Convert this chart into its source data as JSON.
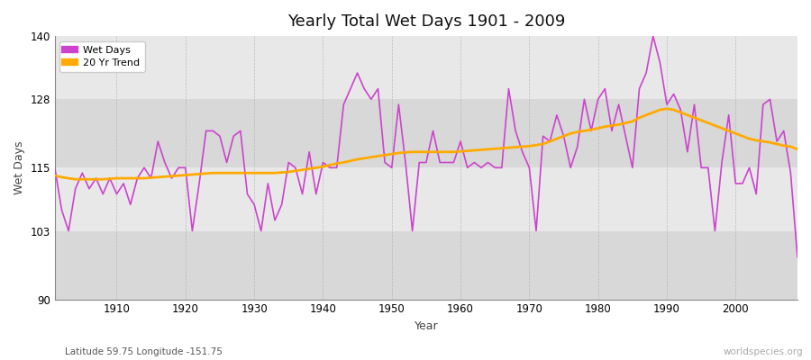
{
  "title": "Yearly Total Wet Days 1901 - 2009",
  "xlabel": "Year",
  "ylabel": "Wet Days",
  "subtitle": "Latitude 59.75 Longitude -151.75",
  "watermark": "worldspecies.org",
  "ylim": [
    90,
    140
  ],
  "yticks": [
    90,
    103,
    115,
    128,
    140
  ],
  "background_color": "#ffffff",
  "plot_bg_color": "#e8e8e8",
  "line_color_wet": "#cc44cc",
  "line_color_trend": "#ffaa00",
  "years": [
    1901,
    1902,
    1903,
    1904,
    1905,
    1906,
    1907,
    1908,
    1909,
    1910,
    1911,
    1912,
    1913,
    1914,
    1915,
    1916,
    1917,
    1918,
    1919,
    1920,
    1921,
    1922,
    1923,
    1924,
    1925,
    1926,
    1927,
    1928,
    1929,
    1930,
    1931,
    1932,
    1933,
    1934,
    1935,
    1936,
    1937,
    1938,
    1939,
    1940,
    1941,
    1942,
    1943,
    1944,
    1945,
    1946,
    1947,
    1948,
    1949,
    1950,
    1951,
    1952,
    1953,
    1954,
    1955,
    1956,
    1957,
    1958,
    1959,
    1960,
    1961,
    1962,
    1963,
    1964,
    1965,
    1966,
    1967,
    1968,
    1969,
    1970,
    1971,
    1972,
    1973,
    1974,
    1975,
    1976,
    1977,
    1978,
    1979,
    1980,
    1981,
    1982,
    1983,
    1984,
    1985,
    1986,
    1987,
    1988,
    1989,
    1990,
    1991,
    1992,
    1993,
    1994,
    1995,
    1996,
    1997,
    1998,
    1999,
    2000,
    2001,
    2002,
    2003,
    2004,
    2005,
    2006,
    2007,
    2008,
    2009
  ],
  "wet_days": [
    115,
    107,
    103,
    111,
    114,
    111,
    113,
    110,
    113,
    110,
    112,
    108,
    113,
    115,
    113,
    120,
    116,
    113,
    115,
    115,
    103,
    112,
    122,
    122,
    121,
    116,
    121,
    122,
    110,
    108,
    103,
    112,
    105,
    108,
    116,
    115,
    110,
    118,
    110,
    116,
    115,
    115,
    127,
    130,
    133,
    130,
    128,
    130,
    116,
    115,
    127,
    116,
    103,
    116,
    116,
    122,
    116,
    116,
    116,
    120,
    115,
    116,
    115,
    116,
    115,
    115,
    130,
    122,
    118,
    115,
    103,
    121,
    120,
    125,
    121,
    115,
    119,
    128,
    122,
    128,
    130,
    122,
    127,
    121,
    115,
    130,
    133,
    140,
    135,
    127,
    129,
    126,
    118,
    127,
    115,
    115,
    103,
    116,
    125,
    112,
    112,
    115,
    110,
    127,
    128,
    120,
    122,
    114,
    98
  ],
  "trend": [
    113.5,
    113.2,
    113.0,
    112.8,
    112.8,
    112.8,
    112.8,
    112.8,
    112.9,
    113.0,
    113.0,
    113.0,
    113.0,
    113.0,
    113.1,
    113.2,
    113.3,
    113.4,
    113.5,
    113.6,
    113.7,
    113.8,
    113.9,
    114.0,
    114.0,
    114.0,
    114.0,
    114.0,
    114.0,
    114.0,
    114.0,
    114.0,
    114.0,
    114.1,
    114.2,
    114.4,
    114.6,
    114.8,
    115.0,
    115.2,
    115.5,
    115.8,
    116.0,
    116.3,
    116.6,
    116.8,
    117.0,
    117.2,
    117.4,
    117.6,
    117.8,
    117.9,
    118.0,
    118.0,
    118.0,
    118.0,
    118.0,
    118.0,
    118.0,
    118.1,
    118.2,
    118.3,
    118.4,
    118.5,
    118.6,
    118.7,
    118.8,
    118.9,
    119.0,
    119.1,
    119.3,
    119.5,
    120.0,
    120.5,
    121.0,
    121.5,
    121.8,
    122.0,
    122.2,
    122.5,
    122.8,
    123.0,
    123.2,
    123.5,
    123.8,
    124.5,
    125.0,
    125.5,
    126.0,
    126.2,
    126.0,
    125.5,
    125.0,
    124.5,
    124.0,
    123.5,
    123.0,
    122.5,
    122.0,
    121.5,
    121.0,
    120.5,
    120.2,
    120.0,
    119.8,
    119.5,
    119.2,
    119.0,
    118.5
  ]
}
